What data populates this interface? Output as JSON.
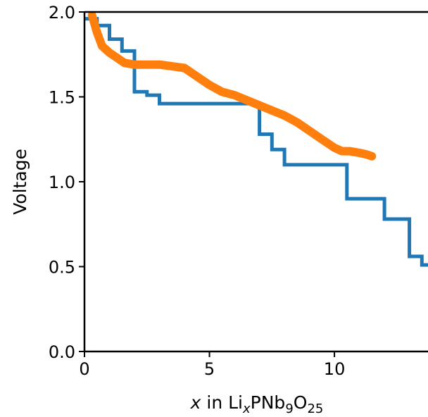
{
  "chart_data": {
    "type": "line",
    "title": "",
    "xlabel": {
      "var": "x",
      "mid": " in Li",
      "sub1": "x",
      "mid2": "PNb",
      "sub2": "9",
      "mid3": "O",
      "sub3": "25"
    },
    "ylabel": "Voltage",
    "xlim": [
      0,
      13.8
    ],
    "ylim": [
      0,
      2.0
    ],
    "xticks": [
      0,
      5,
      10
    ],
    "xtick_labels": [
      "0",
      "5",
      "10"
    ],
    "yticks": [
      0.0,
      0.5,
      1.0,
      1.5,
      2.0
    ],
    "ytick_labels": [
      "0.0",
      "0.5",
      "1.0",
      "1.5",
      "2.0"
    ],
    "grid": false,
    "series": [
      {
        "color": "#1f77b4",
        "style": "step",
        "x": [
          0,
          0.5,
          0.5,
          1.0,
          1.0,
          1.5,
          1.5,
          2.0,
          2.0,
          2.5,
          2.5,
          3.0,
          3.0,
          7.0,
          7.0,
          7.5,
          7.5,
          8.0,
          8.0,
          10.5,
          10.5,
          12.0,
          12.0,
          13.0,
          13.0,
          13.5,
          13.5,
          13.8
        ],
        "y": [
          1.96,
          1.96,
          1.92,
          1.92,
          1.84,
          1.84,
          1.77,
          1.77,
          1.53,
          1.53,
          1.51,
          1.51,
          1.46,
          1.46,
          1.28,
          1.28,
          1.19,
          1.19,
          1.1,
          1.1,
          0.9,
          0.9,
          0.78,
          0.78,
          0.56,
          0.56,
          0.51,
          0.51
        ]
      },
      {
        "color": "#ff7f0e",
        "style": "thick",
        "x": [
          0.3,
          0.5,
          0.7,
          1.0,
          1.3,
          1.6,
          2.0,
          2.5,
          3.0,
          3.5,
          4.0,
          4.3,
          4.6,
          5.0,
          5.5,
          6.0,
          6.5,
          7.0,
          7.5,
          8.0,
          8.5,
          9.0,
          9.5,
          10.0,
          10.3,
          10.6,
          11.0,
          11.3,
          11.5
        ],
        "y": [
          1.98,
          1.88,
          1.8,
          1.76,
          1.73,
          1.7,
          1.69,
          1.69,
          1.69,
          1.68,
          1.67,
          1.64,
          1.61,
          1.57,
          1.53,
          1.51,
          1.48,
          1.45,
          1.42,
          1.39,
          1.35,
          1.3,
          1.25,
          1.2,
          1.18,
          1.18,
          1.17,
          1.16,
          1.15
        ]
      }
    ]
  }
}
